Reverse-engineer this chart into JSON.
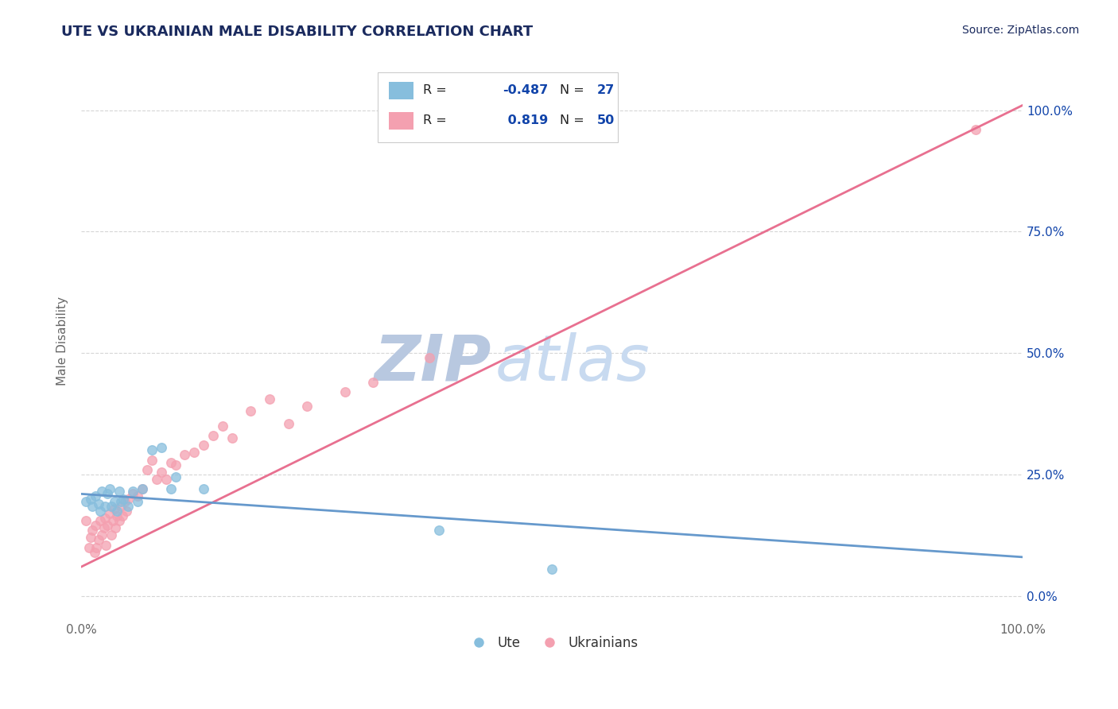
{
  "title": "UTE VS UKRAINIAN MALE DISABILITY CORRELATION CHART",
  "source_text": "Source: ZipAtlas.com",
  "ylabel": "Male Disability",
  "watermark": "ZIPatlas",
  "xlim": [
    0.0,
    1.0
  ],
  "ylim": [
    -0.05,
    1.1
  ],
  "blue_color": "#87BEDD",
  "pink_color": "#F4A0B0",
  "blue_line_color": "#6699CC",
  "pink_line_color": "#E87090",
  "title_color": "#1a2a5e",
  "source_color": "#1a2a5e",
  "legend_r_color": "#1144aa",
  "watermark_color": "#c8d8ee",
  "grid_color": "#cccccc",
  "background_color": "#ffffff",
  "blue_scatter_x": [
    0.005,
    0.01,
    0.012,
    0.015,
    0.018,
    0.02,
    0.022,
    0.025,
    0.028,
    0.03,
    0.032,
    0.035,
    0.038,
    0.04,
    0.042,
    0.045,
    0.05,
    0.055,
    0.06,
    0.065,
    0.075,
    0.085,
    0.095,
    0.1,
    0.13,
    0.38,
    0.5
  ],
  "blue_scatter_y": [
    0.195,
    0.2,
    0.185,
    0.205,
    0.19,
    0.175,
    0.215,
    0.185,
    0.21,
    0.22,
    0.185,
    0.195,
    0.175,
    0.215,
    0.195,
    0.2,
    0.185,
    0.215,
    0.195,
    0.22,
    0.3,
    0.305,
    0.22,
    0.245,
    0.22,
    0.135,
    0.055
  ],
  "pink_scatter_x": [
    0.005,
    0.008,
    0.01,
    0.012,
    0.014,
    0.015,
    0.016,
    0.018,
    0.02,
    0.022,
    0.024,
    0.025,
    0.026,
    0.028,
    0.03,
    0.032,
    0.034,
    0.035,
    0.036,
    0.038,
    0.04,
    0.042,
    0.044,
    0.046,
    0.048,
    0.05,
    0.055,
    0.06,
    0.065,
    0.07,
    0.075,
    0.08,
    0.085,
    0.09,
    0.095,
    0.1,
    0.11,
    0.12,
    0.13,
    0.14,
    0.15,
    0.16,
    0.18,
    0.2,
    0.22,
    0.24,
    0.28,
    0.31,
    0.37,
    0.95
  ],
  "pink_scatter_y": [
    0.155,
    0.1,
    0.12,
    0.135,
    0.09,
    0.145,
    0.1,
    0.115,
    0.155,
    0.125,
    0.14,
    0.16,
    0.105,
    0.145,
    0.17,
    0.125,
    0.155,
    0.18,
    0.14,
    0.165,
    0.155,
    0.185,
    0.165,
    0.195,
    0.175,
    0.2,
    0.21,
    0.205,
    0.22,
    0.26,
    0.28,
    0.24,
    0.255,
    0.24,
    0.275,
    0.27,
    0.29,
    0.295,
    0.31,
    0.33,
    0.35,
    0.325,
    0.38,
    0.405,
    0.355,
    0.39,
    0.42,
    0.44,
    0.49,
    0.96
  ],
  "blue_trend_x": [
    0.0,
    1.0
  ],
  "blue_trend_y": [
    0.21,
    0.08
  ],
  "pink_trend_x": [
    0.0,
    1.0
  ],
  "pink_trend_y": [
    0.06,
    1.01
  ]
}
